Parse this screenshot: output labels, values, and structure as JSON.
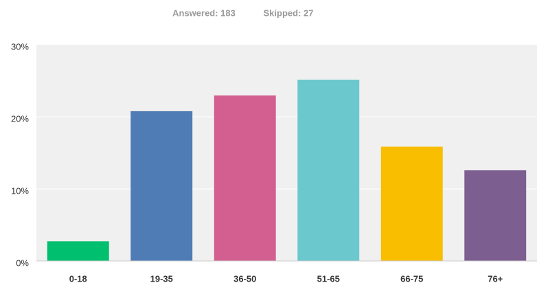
{
  "chart_data": {
    "type": "bar",
    "answered": "Answered: 183",
    "skipped": "Skipped: 27",
    "categories": [
      "0-18",
      "19-35",
      "36-50",
      "51-65",
      "66-75",
      "76+"
    ],
    "values": [
      2.73,
      20.77,
      22.95,
      25.14,
      15.85,
      12.57
    ],
    "colors": [
      "#00bf6f",
      "#507cb6",
      "#d25f90",
      "#6bc8cd",
      "#f9be00",
      "#7d5e90"
    ],
    "ylim": [
      0,
      30
    ],
    "yticks": [
      {
        "value": 0,
        "label": "0%"
      },
      {
        "value": 10,
        "label": "10%"
      },
      {
        "value": 20,
        "label": "20%"
      },
      {
        "value": 30,
        "label": "30%"
      }
    ],
    "grid": true
  }
}
